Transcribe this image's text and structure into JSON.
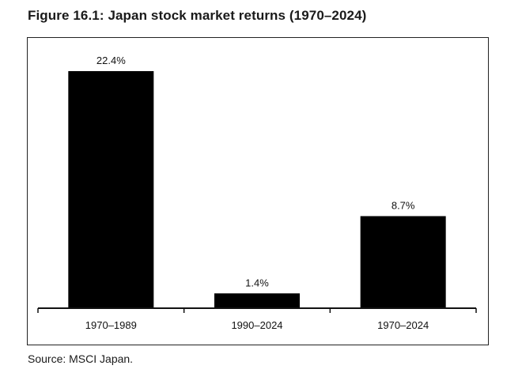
{
  "figure_title": "Figure 16.1: Japan stock market returns (1970–2024)",
  "source": "Source: MSCI Japan.",
  "colors": {
    "bar": "#000000",
    "axis": "#111111",
    "frame": "#222222"
  },
  "chart_data": {
    "type": "bar",
    "title": "Figure 16.1: Japan stock market returns (1970–2024)",
    "xlabel": "",
    "ylabel": "",
    "categories": [
      "1970–1989",
      "1990–2024",
      "1970–2024"
    ],
    "values": [
      22.4,
      1.4,
      8.7
    ],
    "data_labels": [
      "22.4%",
      "1.4%",
      "8.7%"
    ],
    "ylim": [
      0,
      24
    ],
    "grid": false,
    "legend": "none"
  }
}
